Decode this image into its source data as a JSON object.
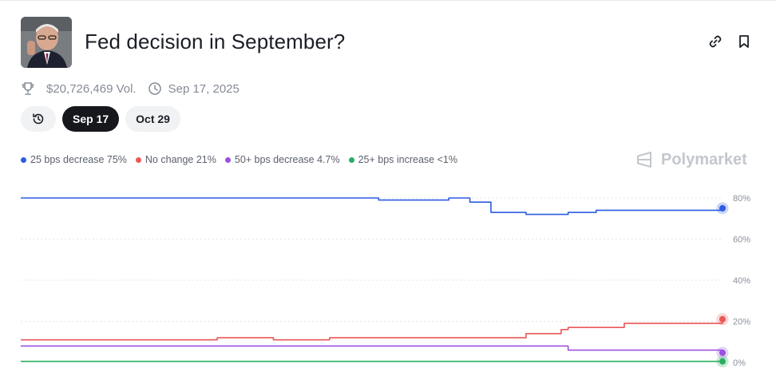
{
  "header": {
    "title": "Fed decision in September?",
    "volume": "$20,726,469 Vol.",
    "date": "Sep 17, 2025",
    "icons": [
      "trophy-icon",
      "clock-icon",
      "link-icon",
      "bookmark-icon"
    ]
  },
  "tabs": [
    {
      "label": "Sep 17",
      "active": true
    },
    {
      "label": "Oct 29",
      "active": false
    }
  ],
  "brand": "Polymarket",
  "legend": [
    {
      "label": "25 bps decrease 75%",
      "color": "#2d5be3"
    },
    {
      "label": "No change 21%",
      "color": "#ea5757"
    },
    {
      "label": "50+ bps decrease 4.7%",
      "color": "#9b51e0"
    },
    {
      "label": "25+ bps increase <1%",
      "color": "#27ae60"
    }
  ],
  "chart_data": {
    "type": "line",
    "x": [
      0,
      14,
      21,
      28,
      30,
      33,
      36,
      38,
      41,
      44,
      46,
      51,
      56,
      61,
      64,
      67,
      72,
      77,
      78,
      82,
      86,
      100
    ],
    "y_ticks": [
      "80%",
      "60%",
      "40%",
      "20%",
      "0%"
    ],
    "ylim": [
      0,
      80
    ],
    "series": [
      {
        "name": "25 bps decrease",
        "color": "#2d5be3",
        "values": [
          80,
          80,
          80,
          80,
          80,
          80,
          80,
          80,
          80,
          80,
          80,
          79,
          79,
          80,
          78,
          73,
          72,
          72,
          73,
          74,
          74,
          75
        ]
      },
      {
        "name": "No change",
        "color": "#ea5757",
        "values": [
          11,
          11,
          11,
          12,
          12,
          12,
          11,
          11,
          11,
          12,
          12,
          12,
          12,
          12,
          12,
          12,
          14,
          16,
          17,
          17,
          19,
          21
        ]
      },
      {
        "name": "50+ bps decrease",
        "color": "#9b51e0",
        "values": [
          8,
          8,
          8,
          8,
          8,
          8,
          8,
          8,
          8,
          8,
          8,
          8,
          8,
          8,
          8,
          8,
          8,
          8,
          6,
          6,
          6,
          4.7
        ]
      },
      {
        "name": "25+ bps increase",
        "color": "#27ae60",
        "values": [
          0.5,
          0.5,
          0.5,
          0.5,
          0.5,
          0.5,
          0.5,
          0.5,
          0.5,
          0.5,
          0.5,
          0.5,
          0.5,
          0.5,
          0.5,
          0.5,
          0.5,
          0.5,
          0.5,
          0.5,
          0.5,
          0.5
        ]
      }
    ]
  }
}
